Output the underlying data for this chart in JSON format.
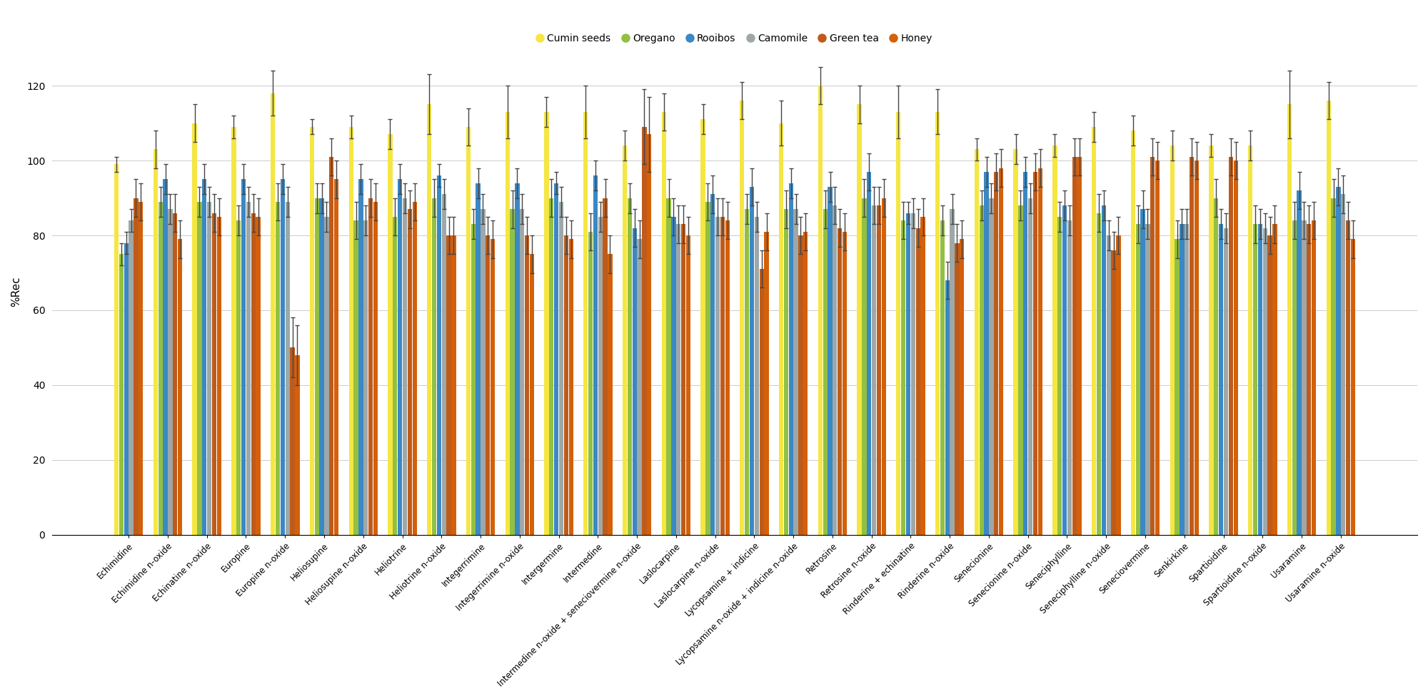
{
  "categories": [
    "Echimidine",
    "Echimidine n-oxide",
    "Echinatine n-oxide",
    "Europine",
    "Europine n-oxide",
    "Heliosupine",
    "Heliosupine n-oxide",
    "Heliotrine",
    "Heliotrine n-oxide",
    "Integerrimine",
    "Integerrimine n-oxide",
    "Intergermine",
    "Intermedine",
    "Intermedine n-oxide + seneciovermine n-oxide",
    "Laslocarpine",
    "Laslocarpine n-oxide",
    "Lycopsamine + indicine",
    "Lycopsamine n-oxide + indicine n-oxide",
    "Retrosine",
    "Retrosine n-oxide",
    "Rinderine + echinatine",
    "Rinderine n-oxide",
    "Senecionine",
    "Senecionine n-oxide",
    "Seneciphylline",
    "Seneciphylline n-oxide",
    "Seneciovermine",
    "Senkirkine",
    "Spartioidine",
    "Spartioidine n-oxide",
    "Usaramine",
    "Usaramine n-oxide"
  ],
  "series": {
    "Cumin seeds": {
      "color": "#f5e642",
      "values": [
        99,
        103,
        110,
        109,
        118,
        109,
        109,
        107,
        115,
        109,
        113,
        113,
        113,
        104,
        113,
        111,
        116,
        110,
        120,
        115,
        113,
        113,
        103,
        103,
        104,
        109,
        108,
        104,
        104,
        104,
        115,
        116
      ],
      "errors": [
        2,
        5,
        5,
        3,
        6,
        2,
        3,
        4,
        8,
        5,
        7,
        4,
        7,
        4,
        5,
        4,
        5,
        6,
        5,
        5,
        7,
        6,
        3,
        4,
        3,
        4,
        4,
        4,
        3,
        4,
        9,
        5
      ]
    },
    "Oregano": {
      "color": "#92c040",
      "values": [
        75,
        89,
        89,
        84,
        89,
        90,
        84,
        85,
        90,
        83,
        87,
        90,
        81,
        90,
        90,
        89,
        87,
        87,
        87,
        90,
        84,
        84,
        88,
        88,
        85,
        86,
        83,
        79,
        90,
        83,
        84,
        90
      ],
      "errors": [
        3,
        4,
        4,
        4,
        5,
        4,
        5,
        5,
        5,
        4,
        5,
        5,
        5,
        4,
        5,
        5,
        4,
        5,
        5,
        5,
        5,
        4,
        4,
        4,
        4,
        5,
        5,
        5,
        5,
        5,
        5,
        5
      ]
    },
    "Rooibos": {
      "color": "#3a88c4",
      "values": [
        78,
        95,
        95,
        95,
        95,
        90,
        95,
        95,
        96,
        94,
        94,
        94,
        96,
        82,
        85,
        91,
        93,
        94,
        93,
        97,
        86,
        68,
        97,
        97,
        88,
        88,
        87,
        83,
        83,
        83,
        92,
        93
      ],
      "errors": [
        3,
        4,
        4,
        4,
        4,
        4,
        4,
        4,
        3,
        4,
        4,
        3,
        4,
        5,
        5,
        5,
        5,
        4,
        4,
        5,
        3,
        5,
        4,
        4,
        4,
        4,
        5,
        4,
        4,
        4,
        5,
        5
      ]
    },
    "Camomile": {
      "color": "#9ea8a8",
      "values": [
        84,
        87,
        89,
        89,
        89,
        85,
        84,
        90,
        91,
        87,
        87,
        89,
        85,
        79,
        83,
        85,
        85,
        87,
        88,
        88,
        86,
        87,
        90,
        90,
        84,
        80,
        83,
        83,
        82,
        82,
        84,
        91
      ],
      "errors": [
        3,
        4,
        4,
        4,
        4,
        4,
        4,
        4,
        4,
        4,
        4,
        4,
        4,
        5,
        5,
        5,
        4,
        4,
        5,
        5,
        4,
        4,
        4,
        4,
        4,
        4,
        4,
        4,
        4,
        4,
        5,
        5
      ]
    },
    "Green tea": {
      "color": "#bf5b1a",
      "values": [
        90,
        86,
        86,
        86,
        50,
        101,
        90,
        87,
        80,
        80,
        80,
        80,
        90,
        109,
        83,
        85,
        71,
        80,
        82,
        88,
        82,
        78,
        97,
        97,
        101,
        76,
        101,
        101,
        101,
        80,
        83,
        84
      ],
      "errors": [
        5,
        5,
        5,
        5,
        8,
        5,
        5,
        5,
        5,
        5,
        5,
        5,
        5,
        10,
        5,
        5,
        5,
        5,
        5,
        5,
        5,
        5,
        5,
        5,
        5,
        5,
        5,
        5,
        5,
        5,
        5,
        5
      ]
    },
    "Honey": {
      "color": "#d4600a",
      "values": [
        89,
        79,
        85,
        85,
        48,
        95,
        89,
        89,
        80,
        79,
        75,
        79,
        75,
        107,
        80,
        84,
        81,
        81,
        81,
        90,
        85,
        79,
        98,
        98,
        101,
        80,
        100,
        100,
        100,
        83,
        84,
        79
      ],
      "errors": [
        5,
        5,
        5,
        5,
        8,
        5,
        5,
        5,
        5,
        5,
        5,
        5,
        5,
        10,
        5,
        5,
        5,
        5,
        5,
        5,
        5,
        5,
        5,
        5,
        5,
        5,
        5,
        5,
        5,
        5,
        5,
        5
      ]
    }
  },
  "ylabel": "%Rec",
  "ylim": [
    0,
    130
  ],
  "yticks": [
    0,
    20,
    40,
    60,
    80,
    100,
    120
  ],
  "background_color": "#ffffff",
  "legend_order": [
    "Cumin seeds",
    "Oregano",
    "Rooibos",
    "Camomile",
    "Green tea",
    "Honey"
  ]
}
